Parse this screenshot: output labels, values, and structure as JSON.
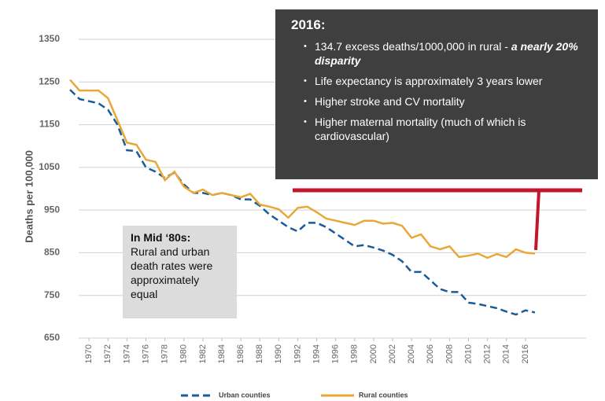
{
  "chart_data": {
    "type": "line",
    "y_label": "Deaths per 100,000",
    "x": [
      1968,
      1969,
      1970,
      1971,
      1972,
      1973,
      1974,
      1975,
      1976,
      1977,
      1978,
      1979,
      1980,
      1981,
      1982,
      1983,
      1984,
      1985,
      1986,
      1987,
      1988,
      1989,
      1990,
      1991,
      1992,
      1993,
      1994,
      1995,
      1996,
      1997,
      1998,
      1999,
      2000,
      2001,
      2002,
      2003,
      2004,
      2005,
      2006,
      2007,
      2008,
      2009,
      2010,
      2011,
      2012,
      2013,
      2014,
      2015,
      2016,
      2017
    ],
    "xlim": [
      1967.5,
      2018.5
    ],
    "xticks": [
      1970,
      1972,
      1974,
      1976,
      1978,
      1980,
      1982,
      1984,
      1986,
      1988,
      1990,
      1992,
      1994,
      1996,
      1998,
      2000,
      2002,
      2004,
      2006,
      2008,
      2010,
      2012,
      2014,
      2016
    ],
    "ylim": [
      650,
      1350
    ],
    "yticks": [
      650,
      750,
      850,
      950,
      1050,
      1150,
      1250,
      1350
    ],
    "grid": true,
    "legend": "bottom",
    "series": [
      {
        "name": "Urban counties",
        "color": "#1b5b97",
        "line_style": "dashed",
        "values": [
          1232,
          1210,
          1205,
          1200,
          1185,
          1150,
          1090,
          1088,
          1050,
          1040,
          1025,
          1038,
          1010,
          990,
          990,
          985,
          990,
          985,
          975,
          975,
          960,
          940,
          925,
          910,
          900,
          920,
          920,
          910,
          895,
          880,
          865,
          868,
          862,
          855,
          845,
          830,
          805,
          805,
          785,
          765,
          758,
          758,
          733,
          730,
          725,
          720,
          712,
          705,
          715,
          710
        ]
      },
      {
        "name": "Rural counties",
        "color": "#e8a838",
        "line_style": "solid",
        "values": [
          1255,
          1230,
          1230,
          1230,
          1212,
          1160,
          1108,
          1103,
          1068,
          1063,
          1020,
          1040,
          1005,
          990,
          998,
          985,
          990,
          985,
          980,
          988,
          963,
          958,
          952,
          932,
          955,
          958,
          945,
          930,
          925,
          920,
          915,
          925,
          925,
          918,
          920,
          913,
          885,
          893,
          865,
          858,
          865,
          840,
          843,
          848,
          838,
          847,
          840,
          858,
          850,
          848
        ]
      }
    ],
    "annotations": {
      "callout": {
        "title": "2016:",
        "bullets": [
          {
            "text": "134.7 excess deaths/1000,000 in rural - ",
            "emphasis": "a nearly 20% disparity"
          },
          {
            "text": "Life expectancy is approximately 3 years lower"
          },
          {
            "text": "Higher stroke and CV mortality"
          },
          {
            "text": "Higher maternal mortality (much of which is cardiovascular)"
          }
        ]
      },
      "note": {
        "title": "In Mid ‘80s:",
        "text": "Rural and urban death rates were approximately equal"
      }
    }
  }
}
